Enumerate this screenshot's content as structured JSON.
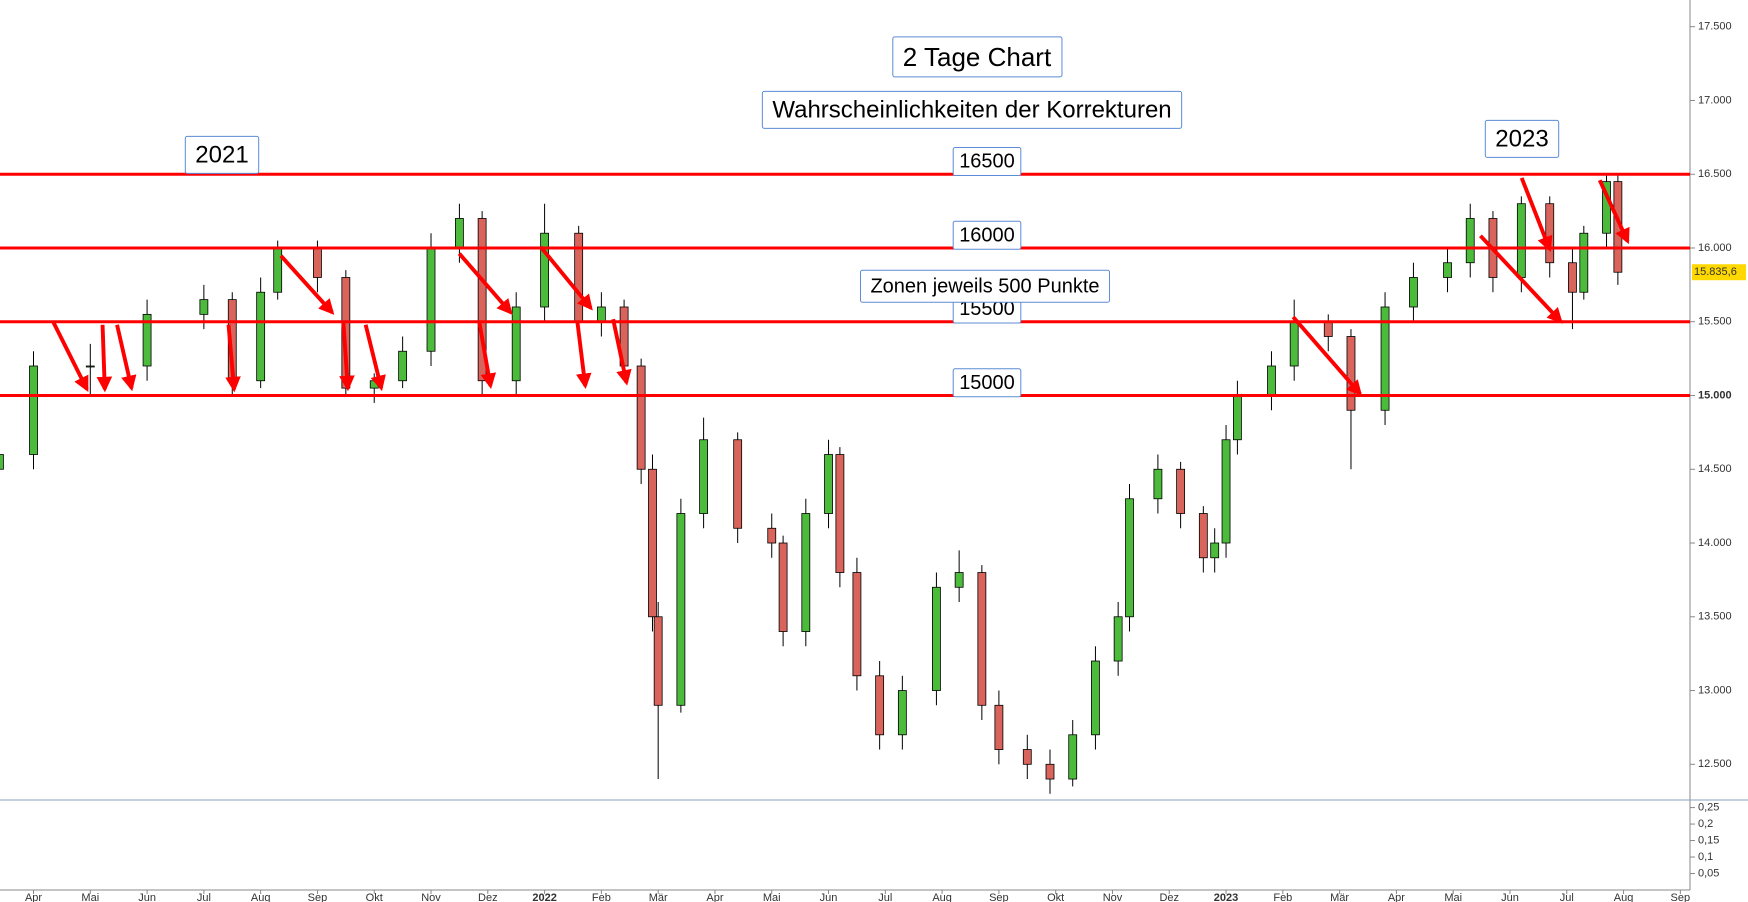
{
  "chart_data": {
    "type": "candlestick",
    "annotations": [
      "2 Tage Chart",
      "Wahrscheinlichkeiten der Korrekturen",
      "2021",
      "2023",
      "Zonen jeweils 500 Punkte"
    ],
    "hlines": [
      {
        "value": 16500,
        "label": "16500"
      },
      {
        "value": 16000,
        "label": "16000"
      },
      {
        "value": 15500,
        "label": "15500"
      },
      {
        "value": 15000,
        "label": "15000"
      }
    ],
    "hline_color": "#ff0000",
    "up_color": "#4cbb3c",
    "down_color": "#d9645c",
    "last_label": {
      "value": 15835.6,
      "label": "15.835,6"
    },
    "xlim": [
      -0.59,
      29.17
    ],
    "xticks": [
      {
        "value": 0,
        "label": "Apr"
      },
      {
        "value": 1,
        "label": "Mai"
      },
      {
        "value": 2,
        "label": "Jun"
      },
      {
        "value": 3,
        "label": "Jul"
      },
      {
        "value": 4,
        "label": "Aug"
      },
      {
        "value": 5,
        "label": "Sep"
      },
      {
        "value": 6,
        "label": "Okt"
      },
      {
        "value": 7,
        "label": "Nov"
      },
      {
        "value": 8,
        "label": "Dez"
      },
      {
        "value": 9,
        "label": "2022"
      },
      {
        "value": 10,
        "label": "Feb"
      },
      {
        "value": 11,
        "label": "Mär"
      },
      {
        "value": 12,
        "label": "Apr"
      },
      {
        "value": 13,
        "label": "Mai"
      },
      {
        "value": 14,
        "label": "Jun"
      },
      {
        "value": 15,
        "label": "Jul"
      },
      {
        "value": 16,
        "label": "Aug"
      },
      {
        "value": 17,
        "label": "Sep"
      },
      {
        "value": 18,
        "label": "Okt"
      },
      {
        "value": 19,
        "label": "Nov"
      },
      {
        "value": 20,
        "label": "Dez"
      },
      {
        "value": 21,
        "label": "2023"
      },
      {
        "value": 22,
        "label": "Feb"
      },
      {
        "value": 23,
        "label": "Mär"
      },
      {
        "value": 24,
        "label": "Apr"
      },
      {
        "value": 25,
        "label": "Mai"
      },
      {
        "value": 26,
        "label": "Jun"
      },
      {
        "value": 27,
        "label": "Jul"
      },
      {
        "value": 28,
        "label": "Aug"
      },
      {
        "value": 29,
        "label": "Sep"
      }
    ],
    "ylim": [
      12258,
      17681
    ],
    "yticks": [
      {
        "value": 12500,
        "label": "12.500"
      },
      {
        "value": 13000,
        "label": "13.000"
      },
      {
        "value": 13500,
        "label": "13.500"
      },
      {
        "value": 14000,
        "label": "14.000"
      },
      {
        "value": 14500,
        "label": "14.500"
      },
      {
        "value": 15000,
        "label": "15.000"
      },
      {
        "value": 15500,
        "label": "15.500"
      },
      {
        "value": 16000,
        "label": "16.000"
      },
      {
        "value": 16500,
        "label": "16.500"
      },
      {
        "value": 17000,
        "label": "17.000"
      },
      {
        "value": 17500,
        "label": "17.500"
      }
    ],
    "lower_ylim": [
      0,
      0.273
    ],
    "lower_yticks": [
      {
        "value": 0.25,
        "label": "0,25"
      },
      {
        "value": 0.2,
        "label": "0,2"
      },
      {
        "value": 0.15,
        "label": "0,15"
      },
      {
        "value": 0.1,
        "label": "0,1"
      },
      {
        "value": 0.05,
        "label": "0,05"
      }
    ],
    "x": [
      -0.6,
      0,
      1,
      2,
      3,
      3.5,
      4,
      4.3,
      5,
      5.5,
      6,
      6.5,
      7,
      7.5,
      7.9,
      8.5,
      9,
      9.6,
      10,
      10.4,
      10.7,
      10.9,
      11,
      11.4,
      11.8,
      12.4,
      13,
      13.2,
      13.6,
      14,
      14.2,
      14.5,
      14.9,
      15.3,
      15.9,
      16.3,
      16.7,
      17,
      17.5,
      17.9,
      18.3,
      18.7,
      19.1,
      19.3,
      19.8,
      20.2,
      20.6,
      20.8,
      21,
      21.2,
      21.8,
      22.2,
      22.8,
      23.2,
      23.8,
      24.3,
      24.9,
      25.3,
      25.7,
      26.2,
      26.7,
      27.1,
      27.3,
      27.7,
      27.9
    ],
    "open": [
      14500,
      14600,
      15200,
      15200,
      15550,
      15650,
      15100,
      15700,
      16000,
      15800,
      15050,
      15100,
      15300,
      16000,
      16200,
      15100,
      15600,
      16100,
      15500,
      15600,
      15200,
      14500,
      13500,
      12900,
      14200,
      14700,
      14100,
      14000,
      13400,
      14200,
      14600,
      13800,
      13100,
      12700,
      13000,
      13700,
      13800,
      12900,
      12600,
      12500,
      12400,
      12700,
      13200,
      13500,
      14300,
      14500,
      14200,
      13900,
      14000,
      14700,
      15000,
      15200,
      15500,
      15400,
      14900,
      15600,
      15800,
      15900,
      16200,
      15800,
      16300,
      15900,
      15700,
      16100,
      16450
    ],
    "high": [
      14700,
      15300,
      15350,
      15650,
      15750,
      15700,
      15800,
      16050,
      16050,
      15850,
      15150,
      15400,
      16100,
      16300,
      16250,
      15700,
      16300,
      16150,
      15700,
      15650,
      15250,
      14600,
      13600,
      14300,
      14850,
      14750,
      14200,
      14050,
      14300,
      14700,
      14650,
      13900,
      13200,
      13100,
      13800,
      13950,
      13850,
      13000,
      12700,
      12600,
      12800,
      13300,
      13600,
      14400,
      14600,
      14550,
      14250,
      14100,
      14800,
      15100,
      15300,
      15650,
      15550,
      15450,
      15700,
      15900,
      16000,
      16300,
      16250,
      16350,
      16350,
      16000,
      16150,
      16500,
      16500
    ],
    "low": [
      14400,
      14500,
      15000,
      15100,
      15450,
      15000,
      15050,
      15650,
      15700,
      15000,
      14950,
      15050,
      15200,
      15900,
      15000,
      15000,
      15500,
      15400,
      15400,
      15100,
      14400,
      13400,
      12400,
      12850,
      14100,
      14000,
      13900,
      13300,
      13300,
      14100,
      13700,
      13000,
      12600,
      12600,
      12900,
      13600,
      12800,
      12500,
      12400,
      12300,
      12350,
      12600,
      13100,
      13400,
      14200,
      14100,
      13800,
      13800,
      13900,
      14600,
      14900,
      15100,
      15300,
      14500,
      14800,
      15500,
      15700,
      15800,
      15700,
      15700,
      15800,
      15450,
      15650,
      16000,
      15750
    ],
    "close": [
      14600,
      15200,
      15200,
      15550,
      15650,
      15100,
      15700,
      16000,
      15800,
      15050,
      15100,
      15300,
      16000,
      16200,
      15100,
      15600,
      16100,
      15500,
      15600,
      15200,
      14500,
      13500,
      12900,
      14200,
      14700,
      14100,
      14000,
      13400,
      14200,
      14600,
      13800,
      13100,
      12700,
      13000,
      13700,
      13800,
      12900,
      12600,
      12500,
      12400,
      12700,
      13200,
      13500,
      14300,
      14500,
      14200,
      13900,
      14000,
      14700,
      15000,
      15200,
      15500,
      15400,
      14900,
      15600,
      15800,
      15900,
      16200,
      15800,
      16300,
      15900,
      15700,
      16100,
      16450,
      15835.6
    ]
  }
}
